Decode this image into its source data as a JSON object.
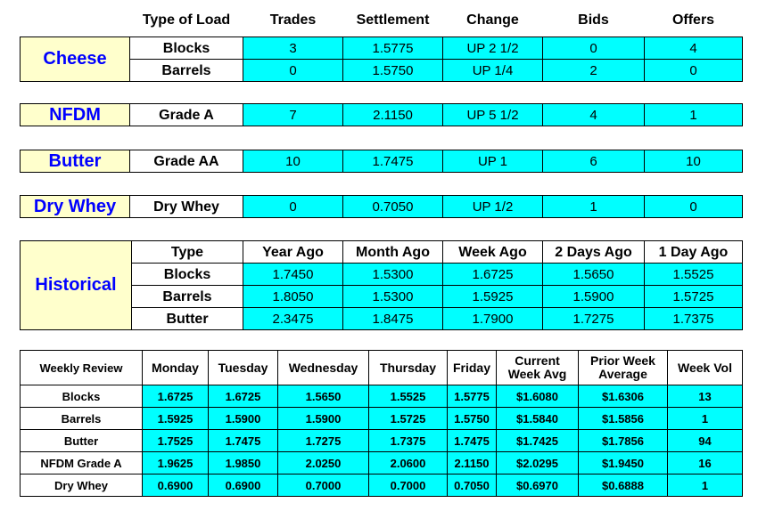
{
  "header": [
    "Type of Load",
    "Trades",
    "Settlement",
    "Change",
    "Bids",
    "Offers"
  ],
  "groups": [
    {
      "name": "Cheese",
      "rows": [
        [
          "Blocks",
          "3",
          "1.5775",
          "UP 2 1/2",
          "0",
          "4"
        ],
        [
          "Barrels",
          "0",
          "1.5750",
          "UP 1/4",
          "2",
          "0"
        ]
      ]
    },
    {
      "name": "NFDM",
      "rows": [
        [
          "Grade A",
          "7",
          "2.1150",
          "UP 5 1/2",
          "4",
          "1"
        ]
      ]
    },
    {
      "name": "Butter",
      "rows": [
        [
          "Grade AA",
          "10",
          "1.7475",
          "UP 1",
          "6",
          "10"
        ]
      ]
    },
    {
      "name": "Dry Whey",
      "rows": [
        [
          "Dry Whey",
          "0",
          "0.7050",
          "UP 1/2",
          "1",
          "0"
        ]
      ]
    }
  ],
  "historical": {
    "title": "Historical",
    "header": [
      "Type",
      "Year Ago",
      "Month Ago",
      "Week Ago",
      "2 Days Ago",
      "1 Day Ago"
    ],
    "rows": [
      [
        "Blocks",
        "1.7450",
        "1.5300",
        "1.6725",
        "1.5650",
        "1.5525"
      ],
      [
        "Barrels",
        "1.8050",
        "1.5300",
        "1.5925",
        "1.5900",
        "1.5725"
      ],
      [
        "Butter",
        "2.3475",
        "1.8475",
        "1.7900",
        "1.7275",
        "1.7375"
      ]
    ]
  },
  "weekly": {
    "header": [
      "Weekly Review",
      "Monday",
      "Tuesday",
      "Wednesday",
      "Thursday",
      "Friday",
      "Current Week Avg",
      "Prior Week Average",
      "Week Vol"
    ],
    "rows": [
      [
        "Blocks",
        "1.6725",
        "1.6725",
        "1.5650",
        "1.5525",
        "1.5775",
        "$1.6080",
        "$1.6306",
        "13"
      ],
      [
        "Barrels",
        "1.5925",
        "1.5900",
        "1.5900",
        "1.5725",
        "1.5750",
        "$1.5840",
        "$1.5856",
        "1"
      ],
      [
        "Butter",
        "1.7525",
        "1.7475",
        "1.7275",
        "1.7375",
        "1.7475",
        "$1.7425",
        "$1.7856",
        "94"
      ],
      [
        "NFDM Grade A",
        "1.9625",
        "1.9850",
        "2.0250",
        "2.0600",
        "2.1150",
        "$2.0295",
        "$1.9450",
        "16"
      ],
      [
        "Dry Whey",
        "0.6900",
        "0.6900",
        "0.7000",
        "0.7000",
        "0.7050",
        "$0.6970",
        "$0.6888",
        "1"
      ]
    ]
  }
}
